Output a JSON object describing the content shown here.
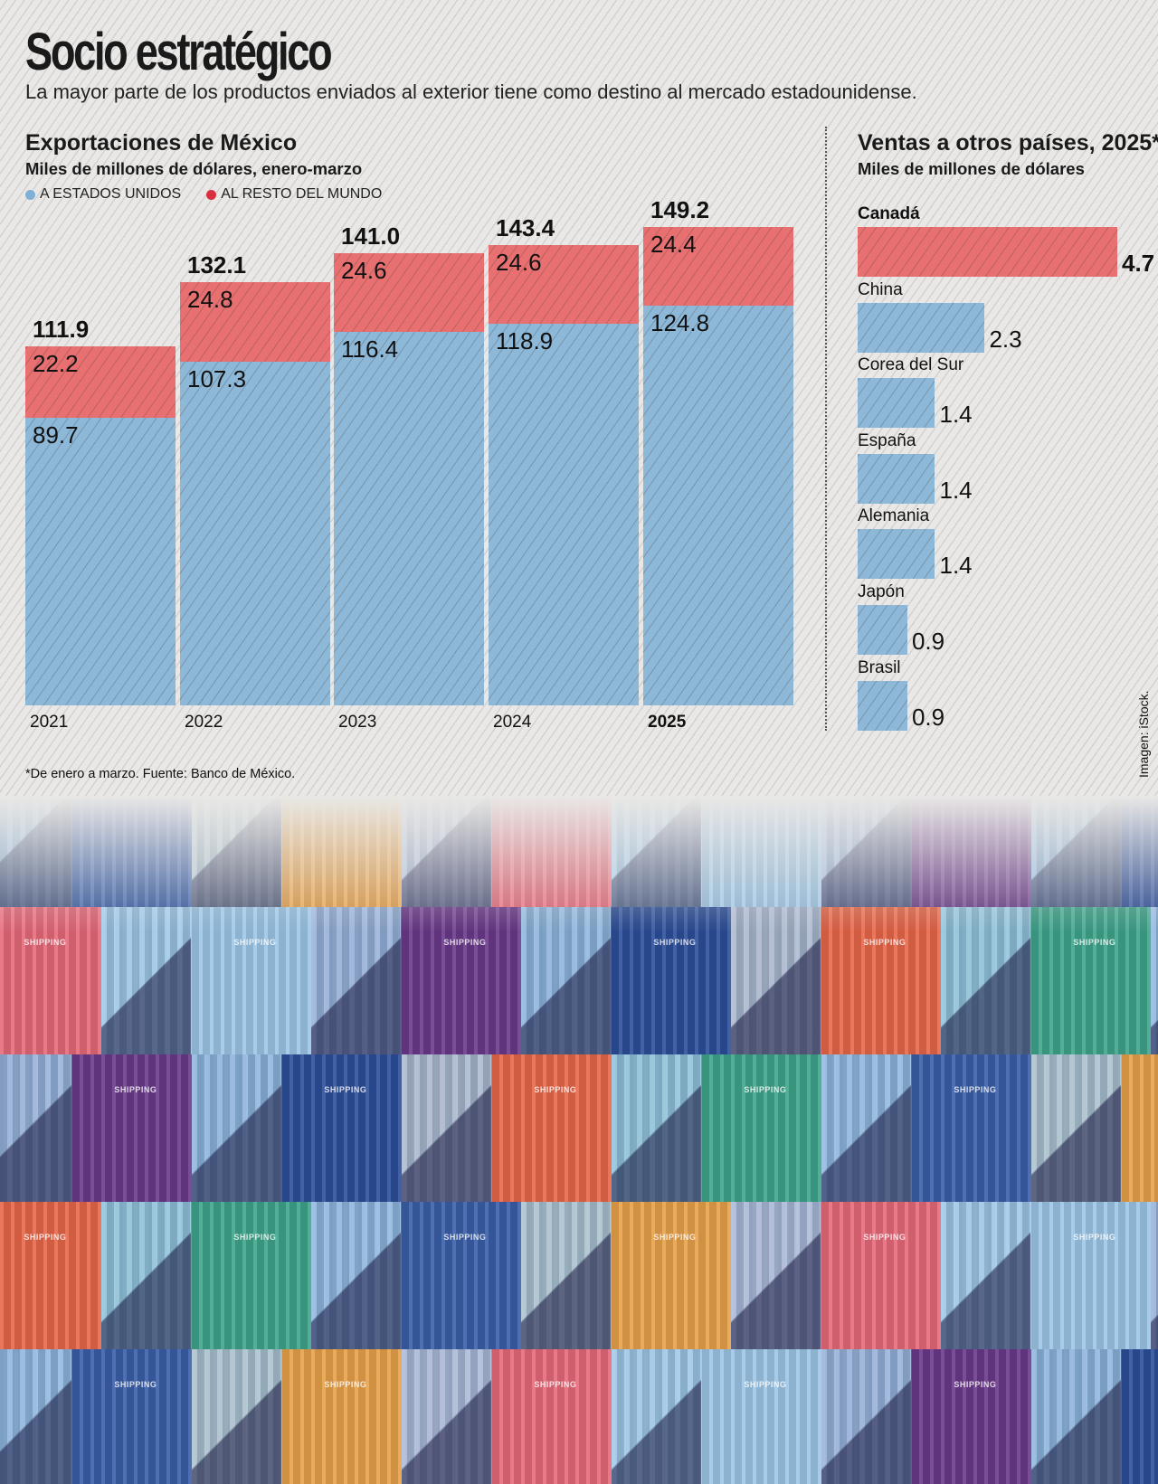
{
  "header": {
    "title": "Socio estratégico",
    "subtitle": "La mayor parte de los productos enviados al exterior tiene como destino al mercado estadounidense."
  },
  "colors": {
    "estados_unidos": "#8db8d8",
    "resto_del_mundo": "#e97070",
    "legend_blue_dot": "#7fb0d6",
    "legend_red_dot": "#d9303f",
    "background": "#e9e8e6"
  },
  "chart_data": [
    {
      "type": "bar",
      "stacked": true,
      "title": "Exportaciones de México",
      "subtitle": "Miles de millones de dólares, enero-marzo",
      "categories": [
        "2021",
        "2022",
        "2023",
        "2024",
        "2025"
      ],
      "series": [
        {
          "name": "A ESTADOS UNIDOS",
          "values": [
            89.7,
            107.3,
            116.4,
            118.9,
            124.8
          ]
        },
        {
          "name": "AL RESTO DEL MUNDO",
          "values": [
            22.2,
            24.8,
            24.6,
            24.6,
            24.4
          ]
        }
      ],
      "totals": [
        "111.9",
        "132.1",
        "141.0",
        "143.4",
        "149.2"
      ],
      "segment_labels": {
        "A ESTADOS UNIDOS": [
          "89.7",
          "107.3",
          "116.4",
          "118.9",
          "124.8"
        ],
        "AL RESTO DEL MUNDO": [
          "22.2",
          "24.8",
          "24.6",
          "24.6",
          "24.4"
        ]
      },
      "highlight_category": "2025",
      "legend": "top-left",
      "xlabel": "",
      "ylabel": "",
      "ylim": [
        0,
        149.2
      ],
      "grid": false
    },
    {
      "type": "bar",
      "orientation": "horizontal",
      "title": "Ventas a otros países, 2025*",
      "subtitle": "Miles de millones de dólares",
      "categories": [
        "Canadá",
        "China",
        "Corea del Sur",
        "España",
        "Alemania",
        "Japón",
        "Brasil"
      ],
      "values": [
        4.7,
        2.3,
        1.4,
        1.4,
        1.4,
        0.9,
        0.9
      ],
      "value_labels": [
        "4.7",
        "2.3",
        "1.4",
        "1.4",
        "1.4",
        "0.9",
        "0.9"
      ],
      "highlight_category": "Canadá",
      "xlim": [
        0,
        4.7
      ],
      "grid": false
    }
  ],
  "footnote": "*De enero a marzo. Fuente: Banco de México.",
  "credit": "Imagen: iStock.",
  "photo": {
    "description": "Contenedores de carga apilados",
    "brand_text": "SHIPPING",
    "container_colors": [
      "#3a5fa8",
      "#9cc6e8",
      "#e8674a",
      "#e8a14a",
      "#6b3a8a",
      "#3fa58c",
      "#e86a7a",
      "#2d4f9a"
    ]
  }
}
